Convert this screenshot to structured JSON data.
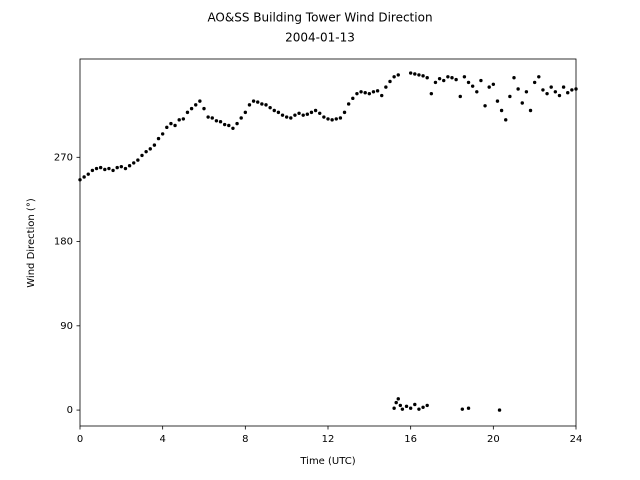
{
  "chart_data": {
    "type": "scatter",
    "title": "AO&SS Building Tower Wind Direction",
    "subtitle": "2004-01-13",
    "x_label": "Time (UTC)",
    "y_label": "Wind Direction (°)",
    "color": "#000000",
    "xlim": [
      0,
      24
    ],
    "xticks": [
      0,
      4,
      8,
      12,
      16,
      20,
      24
    ],
    "ylim": [
      -17,
      375
    ],
    "yticks": [
      0,
      90,
      180,
      270
    ],
    "x": [
      0,
      0.2,
      0.4,
      0.6,
      0.8,
      1.0,
      1.2,
      1.4,
      1.6,
      1.8,
      2.0,
      2.2,
      2.4,
      2.6,
      2.8,
      3.0,
      3.2,
      3.4,
      3.6,
      3.8,
      4.0,
      4.2,
      4.4,
      4.6,
      4.8,
      5.0,
      5.2,
      5.4,
      5.6,
      5.8,
      6.0,
      6.2,
      6.4,
      6.6,
      6.8,
      7.0,
      7.2,
      7.4,
      7.6,
      7.8,
      8.0,
      8.2,
      8.4,
      8.6,
      8.8,
      9.0,
      9.2,
      9.4,
      9.6,
      9.8,
      10.0,
      10.2,
      10.4,
      10.6,
      10.8,
      11.0,
      11.2,
      11.4,
      11.6,
      11.8,
      12.0,
      12.2,
      12.4,
      12.6,
      12.8,
      13.0,
      13.2,
      13.4,
      13.6,
      13.8,
      14.0,
      14.2,
      14.4,
      14.6,
      14.8,
      15.0,
      15.2,
      15.4,
      16.0,
      16.2,
      16.4,
      16.6,
      16.8,
      17.0,
      17.2,
      17.4,
      17.6,
      17.8,
      18.0,
      18.2,
      18.4,
      18.6,
      18.8,
      19.0,
      19.2,
      19.4,
      19.6,
      19.8,
      20.0,
      20.2,
      20.4,
      20.6,
      20.8,
      21.0,
      21.2,
      21.4,
      21.6,
      21.8,
      22.0,
      22.2,
      22.4,
      22.6,
      22.8,
      23.0,
      23.2,
      23.4,
      23.6,
      23.8,
      24.0,
      15.2,
      15.3,
      15.4,
      15.5,
      15.6,
      15.8,
      16.0,
      16.2,
      16.4,
      16.6,
      16.8,
      18.5,
      18.8,
      20.3
    ],
    "values": [
      246,
      249,
      252,
      256,
      258,
      259,
      257,
      258,
      256,
      259,
      260,
      258,
      261,
      264,
      267,
      272,
      276,
      279,
      283,
      290,
      295,
      302,
      306,
      304,
      310,
      311,
      318,
      322,
      326,
      330,
      322,
      313,
      312,
      309,
      308,
      305,
      304,
      301,
      306,
      312,
      318,
      326,
      330,
      329,
      327,
      326,
      323,
      320,
      318,
      315,
      313,
      312,
      315,
      317,
      315,
      316,
      318,
      320,
      317,
      313,
      311,
      310,
      311,
      312,
      318,
      327,
      333,
      338,
      340,
      339,
      338,
      340,
      341,
      336,
      345,
      351,
      356,
      358,
      360,
      359,
      358,
      357,
      355,
      338,
      350,
      354,
      352,
      356,
      355,
      353,
      335,
      356,
      350,
      346,
      340,
      352,
      325,
      345,
      348,
      330,
      320,
      310,
      335,
      355,
      343,
      328,
      340,
      320,
      350,
      356,
      342,
      338,
      345,
      340,
      336,
      345,
      339,
      342,
      343,
      2,
      8,
      12,
      5,
      1,
      4,
      2,
      6,
      1,
      3,
      5,
      1,
      2,
      0
    ]
  }
}
